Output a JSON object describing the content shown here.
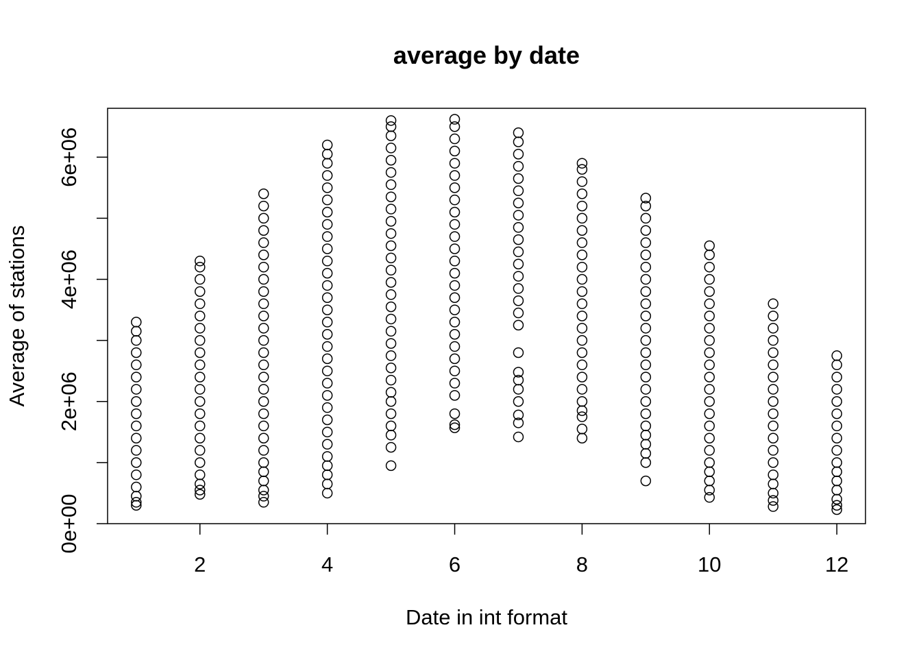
{
  "chart_data": {
    "type": "scatter",
    "title": "average by date",
    "xlabel": "Date in int format",
    "ylabel": "Average of stations",
    "xlim": [
      0.55,
      12.45
    ],
    "ylim": [
      0,
      6800000
    ],
    "x_ticks": [
      2,
      4,
      6,
      8,
      10,
      12
    ],
    "x_tick_labels": [
      "2",
      "4",
      "6",
      "8",
      "10",
      "12"
    ],
    "y_ticks": [
      0,
      1000000,
      2000000,
      3000000,
      4000000,
      5000000,
      6000000
    ],
    "y_tick_labels": [
      "0e+00",
      "",
      "2e+06",
      "",
      "4e+06",
      "",
      "6e+06"
    ],
    "grid": false,
    "legend": "none",
    "marker": "open-circle",
    "color": "#000000",
    "series": [
      {
        "points": [
          [
            1,
            300000
          ],
          [
            1,
            350000
          ],
          [
            1,
            450000
          ],
          [
            1,
            600000
          ],
          [
            1,
            800000
          ],
          [
            1,
            1000000
          ],
          [
            1,
            1200000
          ],
          [
            1,
            1400000
          ],
          [
            1,
            1600000
          ],
          [
            1,
            1800000
          ],
          [
            1,
            2000000
          ],
          [
            1,
            2200000
          ],
          [
            1,
            2400000
          ],
          [
            1,
            2600000
          ],
          [
            1,
            2800000
          ],
          [
            1,
            3000000
          ],
          [
            1,
            3150000
          ],
          [
            1,
            3300000
          ],
          [
            2,
            480000
          ],
          [
            2,
            550000
          ],
          [
            2,
            650000
          ],
          [
            2,
            800000
          ],
          [
            2,
            1000000
          ],
          [
            2,
            1200000
          ],
          [
            2,
            1400000
          ],
          [
            2,
            1600000
          ],
          [
            2,
            1800000
          ],
          [
            2,
            2000000
          ],
          [
            2,
            2200000
          ],
          [
            2,
            2400000
          ],
          [
            2,
            2600000
          ],
          [
            2,
            2800000
          ],
          [
            2,
            3000000
          ],
          [
            2,
            3200000
          ],
          [
            2,
            3400000
          ],
          [
            2,
            3600000
          ],
          [
            2,
            3800000
          ],
          [
            2,
            4000000
          ],
          [
            2,
            4200000
          ],
          [
            2,
            4300000
          ],
          [
            3,
            350000
          ],
          [
            3,
            450000
          ],
          [
            3,
            550000
          ],
          [
            3,
            700000
          ],
          [
            3,
            850000
          ],
          [
            3,
            1000000
          ],
          [
            3,
            1200000
          ],
          [
            3,
            1400000
          ],
          [
            3,
            1600000
          ],
          [
            3,
            1800000
          ],
          [
            3,
            2000000
          ],
          [
            3,
            2200000
          ],
          [
            3,
            2400000
          ],
          [
            3,
            2600000
          ],
          [
            3,
            2800000
          ],
          [
            3,
            3000000
          ],
          [
            3,
            3200000
          ],
          [
            3,
            3400000
          ],
          [
            3,
            3600000
          ],
          [
            3,
            3800000
          ],
          [
            3,
            4000000
          ],
          [
            3,
            4200000
          ],
          [
            3,
            4400000
          ],
          [
            3,
            4600000
          ],
          [
            3,
            4800000
          ],
          [
            3,
            5000000
          ],
          [
            3,
            5200000
          ],
          [
            3,
            5400000
          ],
          [
            4,
            500000
          ],
          [
            4,
            650000
          ],
          [
            4,
            800000
          ],
          [
            4,
            950000
          ],
          [
            4,
            1100000
          ],
          [
            4,
            1300000
          ],
          [
            4,
            1500000
          ],
          [
            4,
            1700000
          ],
          [
            4,
            1900000
          ],
          [
            4,
            2100000
          ],
          [
            4,
            2300000
          ],
          [
            4,
            2500000
          ],
          [
            4,
            2700000
          ],
          [
            4,
            2900000
          ],
          [
            4,
            3100000
          ],
          [
            4,
            3300000
          ],
          [
            4,
            3500000
          ],
          [
            4,
            3700000
          ],
          [
            4,
            3900000
          ],
          [
            4,
            4100000
          ],
          [
            4,
            4300000
          ],
          [
            4,
            4500000
          ],
          [
            4,
            4700000
          ],
          [
            4,
            4900000
          ],
          [
            4,
            5100000
          ],
          [
            4,
            5300000
          ],
          [
            4,
            5500000
          ],
          [
            4,
            5700000
          ],
          [
            4,
            5900000
          ],
          [
            4,
            6050000
          ],
          [
            4,
            6200000
          ],
          [
            5,
            950000
          ],
          [
            5,
            1250000
          ],
          [
            5,
            1450000
          ],
          [
            5,
            1600000
          ],
          [
            5,
            1800000
          ],
          [
            5,
            2000000
          ],
          [
            5,
            2150000
          ],
          [
            5,
            2350000
          ],
          [
            5,
            2550000
          ],
          [
            5,
            2750000
          ],
          [
            5,
            2950000
          ],
          [
            5,
            3150000
          ],
          [
            5,
            3350000
          ],
          [
            5,
            3550000
          ],
          [
            5,
            3750000
          ],
          [
            5,
            3950000
          ],
          [
            5,
            4150000
          ],
          [
            5,
            4350000
          ],
          [
            5,
            4550000
          ],
          [
            5,
            4750000
          ],
          [
            5,
            4950000
          ],
          [
            5,
            5150000
          ],
          [
            5,
            5350000
          ],
          [
            5,
            5550000
          ],
          [
            5,
            5750000
          ],
          [
            5,
            5950000
          ],
          [
            5,
            6150000
          ],
          [
            5,
            6350000
          ],
          [
            5,
            6500000
          ],
          [
            5,
            6600000
          ],
          [
            6,
            1570000
          ],
          [
            6,
            1620000
          ],
          [
            6,
            1800000
          ],
          [
            6,
            2100000
          ],
          [
            6,
            2300000
          ],
          [
            6,
            2500000
          ],
          [
            6,
            2700000
          ],
          [
            6,
            2900000
          ],
          [
            6,
            3100000
          ],
          [
            6,
            3300000
          ],
          [
            6,
            3500000
          ],
          [
            6,
            3700000
          ],
          [
            6,
            3900000
          ],
          [
            6,
            4100000
          ],
          [
            6,
            4300000
          ],
          [
            6,
            4500000
          ],
          [
            6,
            4700000
          ],
          [
            6,
            4900000
          ],
          [
            6,
            5100000
          ],
          [
            6,
            5300000
          ],
          [
            6,
            5500000
          ],
          [
            6,
            5700000
          ],
          [
            6,
            5900000
          ],
          [
            6,
            6100000
          ],
          [
            6,
            6300000
          ],
          [
            6,
            6500000
          ],
          [
            6,
            6620000
          ],
          [
            7,
            1420000
          ],
          [
            7,
            1650000
          ],
          [
            7,
            1780000
          ],
          [
            7,
            2000000
          ],
          [
            7,
            2200000
          ],
          [
            7,
            2350000
          ],
          [
            7,
            2480000
          ],
          [
            7,
            2800000
          ],
          [
            7,
            3250000
          ],
          [
            7,
            3450000
          ],
          [
            7,
            3650000
          ],
          [
            7,
            3850000
          ],
          [
            7,
            4050000
          ],
          [
            7,
            4250000
          ],
          [
            7,
            4450000
          ],
          [
            7,
            4650000
          ],
          [
            7,
            4850000
          ],
          [
            7,
            5050000
          ],
          [
            7,
            5250000
          ],
          [
            7,
            5450000
          ],
          [
            7,
            5650000
          ],
          [
            7,
            5850000
          ],
          [
            7,
            6050000
          ],
          [
            7,
            6250000
          ],
          [
            7,
            6400000
          ],
          [
            8,
            1400000
          ],
          [
            8,
            1550000
          ],
          [
            8,
            1750000
          ],
          [
            8,
            1850000
          ],
          [
            8,
            2000000
          ],
          [
            8,
            2200000
          ],
          [
            8,
            2400000
          ],
          [
            8,
            2600000
          ],
          [
            8,
            2800000
          ],
          [
            8,
            3000000
          ],
          [
            8,
            3200000
          ],
          [
            8,
            3400000
          ],
          [
            8,
            3600000
          ],
          [
            8,
            3800000
          ],
          [
            8,
            4000000
          ],
          [
            8,
            4200000
          ],
          [
            8,
            4400000
          ],
          [
            8,
            4600000
          ],
          [
            8,
            4800000
          ],
          [
            8,
            5000000
          ],
          [
            8,
            5200000
          ],
          [
            8,
            5400000
          ],
          [
            8,
            5600000
          ],
          [
            8,
            5800000
          ],
          [
            8,
            5900000
          ],
          [
            9,
            700000
          ],
          [
            9,
            1000000
          ],
          [
            9,
            1150000
          ],
          [
            9,
            1300000
          ],
          [
            9,
            1450000
          ],
          [
            9,
            1600000
          ],
          [
            9,
            1800000
          ],
          [
            9,
            2000000
          ],
          [
            9,
            2200000
          ],
          [
            9,
            2400000
          ],
          [
            9,
            2600000
          ],
          [
            9,
            2800000
          ],
          [
            9,
            3000000
          ],
          [
            9,
            3200000
          ],
          [
            9,
            3400000
          ],
          [
            9,
            3600000
          ],
          [
            9,
            3800000
          ],
          [
            9,
            4000000
          ],
          [
            9,
            4200000
          ],
          [
            9,
            4400000
          ],
          [
            9,
            4600000
          ],
          [
            9,
            4800000
          ],
          [
            9,
            5000000
          ],
          [
            9,
            5200000
          ],
          [
            9,
            5330000
          ],
          [
            10,
            430000
          ],
          [
            10,
            550000
          ],
          [
            10,
            700000
          ],
          [
            10,
            850000
          ],
          [
            10,
            1000000
          ],
          [
            10,
            1200000
          ],
          [
            10,
            1400000
          ],
          [
            10,
            1600000
          ],
          [
            10,
            1800000
          ],
          [
            10,
            2000000
          ],
          [
            10,
            2200000
          ],
          [
            10,
            2400000
          ],
          [
            10,
            2600000
          ],
          [
            10,
            2800000
          ],
          [
            10,
            3000000
          ],
          [
            10,
            3200000
          ],
          [
            10,
            3400000
          ],
          [
            10,
            3600000
          ],
          [
            10,
            3800000
          ],
          [
            10,
            4000000
          ],
          [
            10,
            4200000
          ],
          [
            10,
            4400000
          ],
          [
            10,
            4550000
          ],
          [
            11,
            280000
          ],
          [
            11,
            380000
          ],
          [
            11,
            500000
          ],
          [
            11,
            650000
          ],
          [
            11,
            800000
          ],
          [
            11,
            1000000
          ],
          [
            11,
            1200000
          ],
          [
            11,
            1400000
          ],
          [
            11,
            1600000
          ],
          [
            11,
            1800000
          ],
          [
            11,
            2000000
          ],
          [
            11,
            2200000
          ],
          [
            11,
            2400000
          ],
          [
            11,
            2600000
          ],
          [
            11,
            2800000
          ],
          [
            11,
            3000000
          ],
          [
            11,
            3200000
          ],
          [
            11,
            3400000
          ],
          [
            11,
            3600000
          ],
          [
            12,
            230000
          ],
          [
            12,
            300000
          ],
          [
            12,
            400000
          ],
          [
            12,
            550000
          ],
          [
            12,
            700000
          ],
          [
            12,
            850000
          ],
          [
            12,
            1000000
          ],
          [
            12,
            1200000
          ],
          [
            12,
            1400000
          ],
          [
            12,
            1600000
          ],
          [
            12,
            1800000
          ],
          [
            12,
            2000000
          ],
          [
            12,
            2200000
          ],
          [
            12,
            2400000
          ],
          [
            12,
            2600000
          ],
          [
            12,
            2750000
          ]
        ]
      }
    ]
  }
}
